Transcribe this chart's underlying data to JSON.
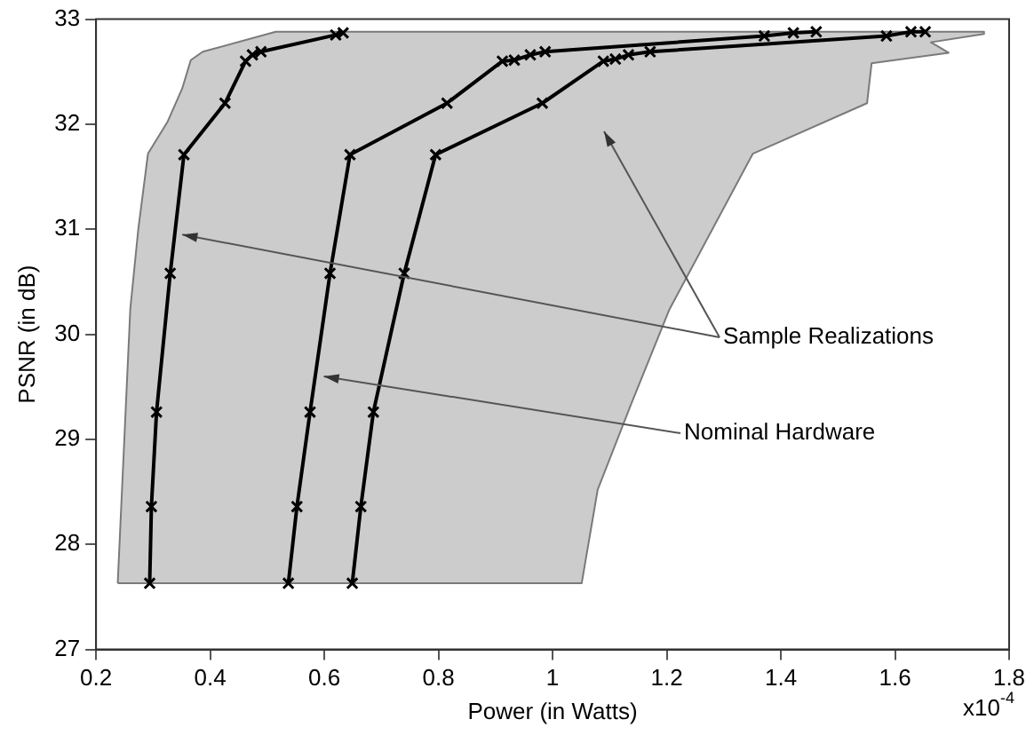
{
  "chart_data": {
    "type": "line",
    "xlabel": "Power (in Watts)",
    "ylabel": "PSNR (in dB)",
    "xlim": [
      0.2,
      1.8
    ],
    "xticks": [
      0.2,
      0.4,
      0.6,
      0.8,
      1,
      1.2,
      1.4,
      1.6,
      1.8
    ],
    "ylim": [
      27,
      33
    ],
    "yticks": [
      27,
      28,
      29,
      30,
      31,
      32,
      33
    ],
    "grid": false,
    "legend": false,
    "line_style": "solid",
    "series": [
      {
        "type": "area",
        "color": "#cccccc",
        "x": [
          0.238,
          1.051,
          1.079,
          1.138,
          1.205,
          1.351,
          1.551,
          1.559,
          1.694,
          1.663,
          1.756,
          1.756,
          0.515,
          0.387,
          0.366,
          0.351,
          0.325,
          0.291,
          0.274,
          0.26,
          0.238
        ],
        "values": [
          27.63,
          27.63,
          28.52,
          29.34,
          30.24,
          31.72,
          32.2,
          32.58,
          32.68,
          32.78,
          32.86,
          32.88,
          32.88,
          32.69,
          32.61,
          32.34,
          32.02,
          31.72,
          31.0,
          30.24,
          27.63
        ]
      },
      {
        "marker": "cross",
        "color": "#000000",
        "x": [
          0.294,
          0.297,
          0.306,
          0.33,
          0.354,
          0.426,
          0.462,
          0.474,
          0.489,
          0.62,
          0.633
        ],
        "values": [
          27.63,
          28.36,
          29.26,
          30.58,
          31.71,
          32.2,
          32.6,
          32.66,
          32.69,
          32.85,
          32.87
        ]
      },
      {
        "marker": "cross",
        "color": "#000000",
        "x": [
          0.537,
          0.552,
          0.575,
          0.61,
          0.645,
          0.815,
          0.912,
          0.933,
          0.961,
          0.987,
          1.371,
          1.422,
          1.462
        ],
        "values": [
          27.63,
          28.36,
          29.26,
          30.58,
          31.71,
          32.2,
          32.6,
          32.61,
          32.66,
          32.69,
          32.84,
          32.87,
          32.88
        ]
      },
      {
        "marker": "cross",
        "color": "#000000",
        "x": [
          0.649,
          0.664,
          0.686,
          0.74,
          0.795,
          0.982,
          1.089,
          1.11,
          1.133,
          1.171,
          1.585,
          1.628,
          1.653
        ],
        "values": [
          27.63,
          28.36,
          29.26,
          30.58,
          31.71,
          32.2,
          32.6,
          32.62,
          32.66,
          32.69,
          32.84,
          32.88,
          32.88
        ]
      }
    ],
    "annotations": [
      {
        "text": "Sample Realizations",
        "x": 0.351,
        "y": 30.95
      },
      {
        "text": "Nominal Hardware",
        "x": 0.599,
        "y": 29.6
      },
      "x10$^{-4}$"
    ]
  }
}
